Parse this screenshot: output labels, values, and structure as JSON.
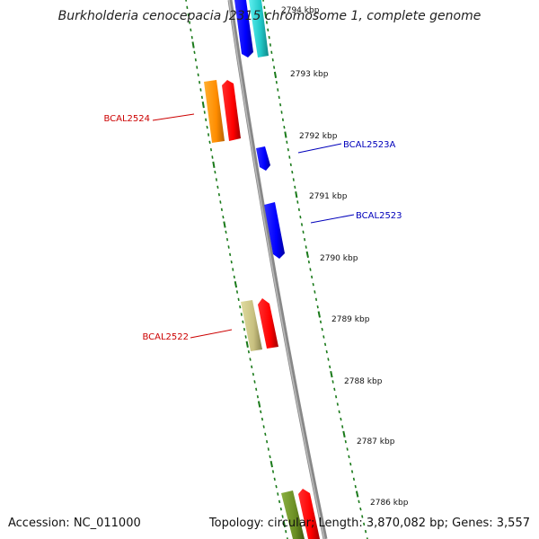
{
  "title": "Burkholderia cenocepacia J2315 chromosome 1, complete genome",
  "footer": {
    "accession": "Accession: NC_011000",
    "summary": "Topology: circular; Length: 3,870,082 bp; Genes: 3,557"
  },
  "colors": {
    "backbone": "#888888",
    "tick": "#1a7a1a",
    "label_forward": "#cc0000",
    "label_reverse": "#0000bb"
  },
  "ticks": [
    "2794 kbp",
    "2793 kbp",
    "2792 kbp",
    "2791 kbp",
    "2790 kbp",
    "2789 kbp",
    "2788 kbp",
    "2787 kbp",
    "2786 kbp"
  ],
  "gene_labels": [
    {
      "name": "BCAL2524",
      "strand": "forward"
    },
    {
      "name": "BCAL2523A",
      "strand": "reverse"
    },
    {
      "name": "BCAL2523",
      "strand": "reverse"
    },
    {
      "name": "BCAL2522",
      "strand": "forward"
    }
  ]
}
